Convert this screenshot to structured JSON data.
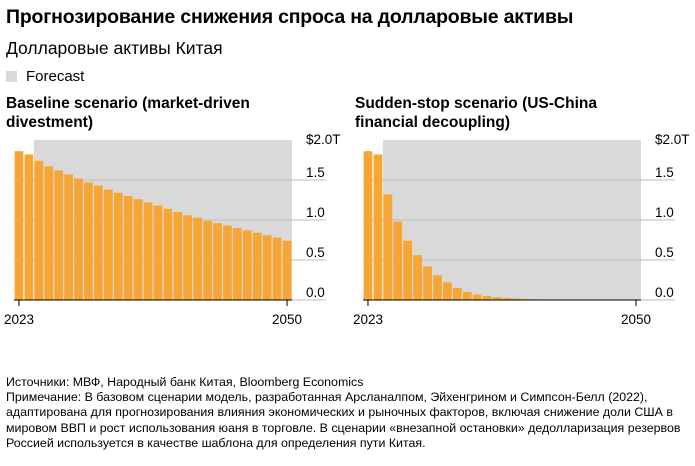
{
  "header": {
    "title": "Прогнозирование снижения спроса на долларовые активы",
    "subtitle": "Долларовые активы Китая"
  },
  "legend": {
    "forecast_label": "Forecast"
  },
  "colors": {
    "bar": "#f7a535",
    "forecast_bg": "#d9d9d9",
    "grid": "#bdbdbd"
  },
  "chart_data": [
    {
      "type": "bar",
      "title": "Baseline scenario (market-driven divestment)",
      "unit_label": "$2.0T",
      "x": [
        2023,
        2024,
        2025,
        2026,
        2027,
        2028,
        2029,
        2030,
        2031,
        2032,
        2033,
        2034,
        2035,
        2036,
        2037,
        2038,
        2039,
        2040,
        2041,
        2042,
        2043,
        2044,
        2045,
        2046,
        2047,
        2048,
        2049,
        2050
      ],
      "values": [
        1.86,
        1.82,
        1.74,
        1.67,
        1.62,
        1.57,
        1.52,
        1.47,
        1.43,
        1.38,
        1.34,
        1.3,
        1.26,
        1.22,
        1.18,
        1.14,
        1.1,
        1.06,
        1.03,
        0.99,
        0.96,
        0.93,
        0.9,
        0.87,
        0.84,
        0.81,
        0.78,
        0.74
      ],
      "forecast_start": 2025,
      "ylim": [
        0,
        2.0
      ],
      "yticks": [
        "$2.0T",
        "1.5",
        "1.0",
        "0.5",
        "0.0"
      ],
      "xticks": [
        "2023",
        "2050"
      ]
    },
    {
      "type": "bar",
      "title": "Sudden-stop scenario (US-China financial decoupling)",
      "unit_label": "$2.0T",
      "x": [
        2023,
        2024,
        2025,
        2026,
        2027,
        2028,
        2029,
        2030,
        2031,
        2032,
        2033,
        2034,
        2035,
        2036,
        2037,
        2038,
        2039,
        2040,
        2041,
        2042,
        2043,
        2044,
        2045,
        2046,
        2047,
        2048,
        2049,
        2050
      ],
      "values": [
        1.86,
        1.82,
        1.32,
        0.98,
        0.74,
        0.56,
        0.42,
        0.31,
        0.22,
        0.15,
        0.1,
        0.07,
        0.05,
        0.035,
        0.025,
        0.018,
        0.012,
        0.008,
        0.006,
        0.004,
        0.003,
        0.002,
        0.002,
        0.001,
        0.001,
        0.001,
        0.001,
        0.001
      ],
      "forecast_start": 2025,
      "ylim": [
        0,
        2.0
      ],
      "yticks": [
        "$2.0T",
        "1.5",
        "1.0",
        "0.5",
        "0.0"
      ],
      "xticks": [
        "2023",
        "2050"
      ]
    }
  ],
  "notes": {
    "sources": "Источники: МВФ, Народный банк Китая, Bloomberg Economics",
    "note": "Примечание: В базовом сценарии модель, разработанная Арсланалпом, Эйхенгрином и Симпсон-Белл (2022), адаптирована для прогнозирования влияния экономических и рыночных факторов, включая снижение доли США в мировом ВВП и рост использования юаня в торговле. В сценарии «внезапной остановки» дедолларизация резервов Россией используется в качестве шаблона для определения пути Китая."
  }
}
